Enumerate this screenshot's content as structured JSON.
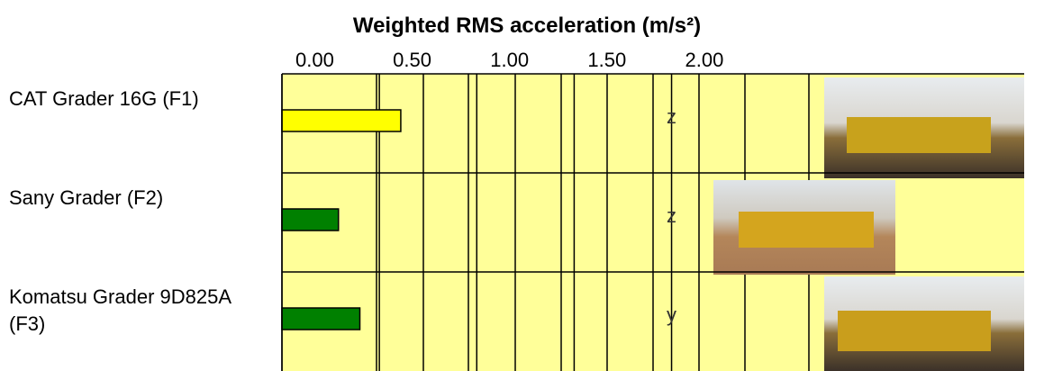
{
  "chart_data": {
    "type": "bar",
    "orientation": "horizontal",
    "title": "Weighted RMS acceleration (m/s²)",
    "categories": [
      "CAT Grader 16G (F1)",
      "Sany Grader (F2)",
      "Komatsu Grader 9D825A (F3)"
    ],
    "values": [
      0.61,
      0.29,
      0.4
    ],
    "colors": [
      "#ffff00",
      "#008000",
      "#008000"
    ],
    "annotations": [
      "z",
      "z",
      "y"
    ],
    "xlim": [
      0,
      3.81
    ],
    "xticks": [
      {
        "value": 0,
        "label": "0.00"
      },
      {
        "value": 0.5,
        "label": "0.50"
      },
      {
        "value": 1,
        "label": "1.00"
      },
      {
        "value": 1.5,
        "label": "1.50"
      },
      {
        "value": 2,
        "label": "2.00"
      }
    ],
    "background": "#ffff99",
    "grid": true
  }
}
